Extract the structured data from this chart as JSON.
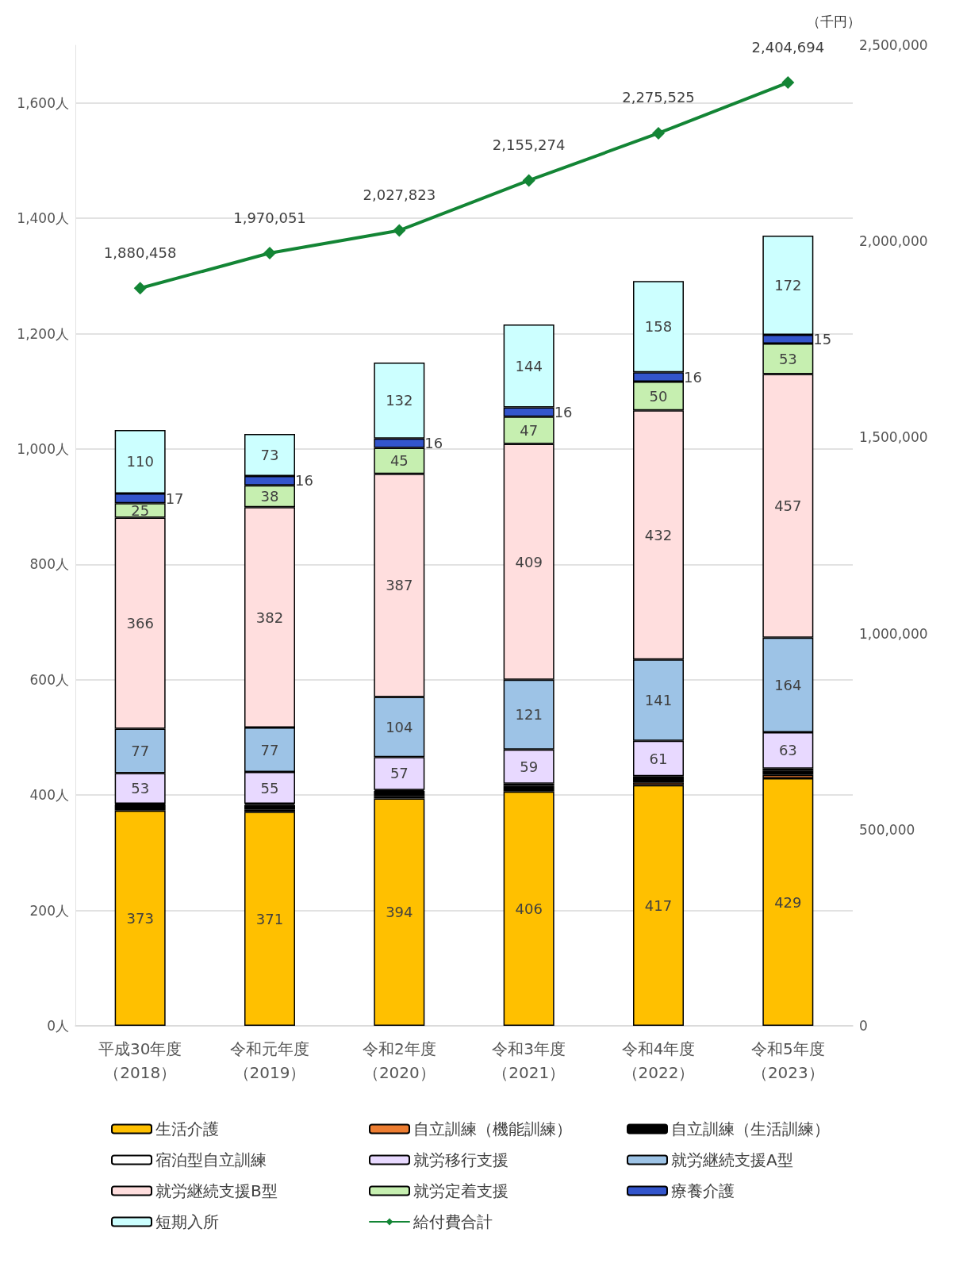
{
  "chart_data": {
    "type": "bar",
    "stacked": true,
    "categories": [
      "平成30年度（2018）",
      "令和元年度（2019）",
      "令和2年度（2020）",
      "令和3年度（2021）",
      "令和4年度（2022）",
      "令和5年度（2023）"
    ],
    "y2label": "（千円）",
    "ylim": [
      0,
      1700
    ],
    "yticks": [
      {
        "value": 0,
        "label": "0人"
      },
      {
        "value": 200,
        "label": "200人"
      },
      {
        "value": 400,
        "label": "400人"
      },
      {
        "value": 600,
        "label": "600人"
      },
      {
        "value": 800,
        "label": "800人"
      },
      {
        "value": 1000,
        "label": "1,000人"
      },
      {
        "value": 1200,
        "label": "1,200人"
      },
      {
        "value": 1400,
        "label": "1,400人"
      },
      {
        "value": 1600,
        "label": "1,600人"
      }
    ],
    "y2lim": [
      0,
      2500000
    ],
    "y2ticks": [
      0,
      {
        "value": 500000,
        "label": "500,000"
      },
      {
        "value": 1000000,
        "label": "1,000,000"
      },
      {
        "value": 1500000,
        "label": "1,500,000"
      },
      {
        "value": 2000000,
        "label": "2,000,000"
      },
      {
        "value": 2500000,
        "label": "2,500,000"
      }
    ],
    "grid": "y",
    "legend": "bottom",
    "series": [
      {
        "name": "生活介護",
        "color": "#ffc000",
        "values": [
          373,
          371,
          394,
          406,
          417,
          429
        ],
        "value_labels": [
          "373",
          "371",
          "394",
          "406",
          "417",
          "429"
        ]
      },
      {
        "name": "自立訓練（機能訓練）",
        "color": "#ed7d31",
        "values": [
          4,
          4,
          4,
          4,
          5,
          6
        ]
      },
      {
        "name": "自立訓練（生活訓練）",
        "color": "#000000",
        "values": [
          7,
          8,
          9,
          6,
          7,
          7
        ]
      },
      {
        "name": "宿泊型自立訓練",
        "color": "#ffffff",
        "values": [
          1,
          2,
          2,
          4,
          4,
          4
        ]
      },
      {
        "name": "就労移行支援",
        "color": "#e8d9ff",
        "values": [
          53,
          55,
          57,
          59,
          61,
          63
        ],
        "value_labels": [
          "53",
          "55",
          "57",
          "59",
          "61",
          "63"
        ]
      },
      {
        "name": "就労継続支援A型",
        "color": "#9dc3e6",
        "values": [
          77,
          77,
          104,
          121,
          141,
          164
        ],
        "value_labels": [
          "77",
          "77",
          "104",
          "121",
          "141",
          "164"
        ]
      },
      {
        "name": "就労継続支援B型",
        "color": "#ffdede",
        "values": [
          366,
          382,
          387,
          409,
          432,
          457
        ],
        "value_labels": [
          "366",
          "382",
          "387",
          "409",
          "432",
          "457"
        ]
      },
      {
        "name": "就労定着支援",
        "color": "#c6efb0",
        "values": [
          25,
          38,
          45,
          47,
          50,
          53
        ],
        "value_labels": [
          "25",
          "38",
          "45",
          "47",
          "50",
          "53"
        ]
      },
      {
        "name": "療養介護",
        "color": "#3355cc",
        "values": [
          17,
          16,
          16,
          16,
          16,
          15
        ],
        "value_labels": [
          "17",
          "16",
          "16",
          "16",
          "16",
          "15"
        ]
      },
      {
        "name": "短期入所",
        "color": "#ccffff",
        "values": [
          110,
          73,
          132,
          144,
          158,
          172
        ],
        "value_labels": [
          "110",
          "73",
          "132",
          "144",
          "158",
          "172"
        ]
      },
      {
        "name": "給付費合計",
        "type": "line",
        "axis": "y2",
        "color": "#138535",
        "marker": "diamond",
        "values": [
          1880458,
          1970051,
          2027823,
          2155274,
          2275525,
          2404694
        ],
        "value_labels": [
          "1,880,458",
          "1,970,051",
          "2,027,823",
          "2,155,274",
          "2,275,525",
          "2,404,694"
        ]
      }
    ]
  }
}
